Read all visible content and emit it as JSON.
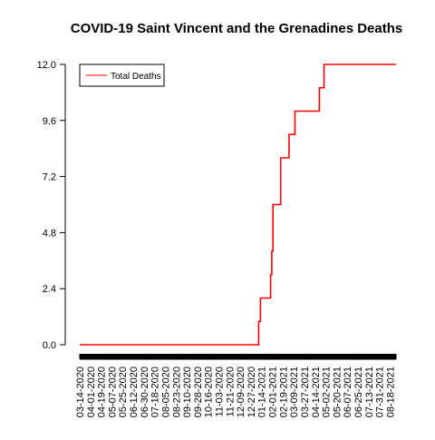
{
  "chart_data": {
    "type": "line",
    "title": "COVID-19 Saint Vincent and the Grenadines Deaths",
    "xlabel": "",
    "ylabel": "",
    "ylim": [
      0,
      12.0
    ],
    "y_ticks": [
      "0.0",
      "2.4",
      "4.8",
      "7.2",
      "9.6",
      "12.0"
    ],
    "x_range": [
      "2020-03-14",
      "2021-08-28"
    ],
    "x_tick_labels": [
      "03-14-2020",
      "04-01-2020",
      "04-19-2020",
      "05-07-2020",
      "05-25-2020",
      "06-12-2020",
      "06-30-2020",
      "07-18-2020",
      "08-05-2020",
      "08-23-2020",
      "09-10-2020",
      "09-28-2020",
      "10-16-2020",
      "11-03-2020",
      "11-21-2020",
      "12-09-2020",
      "12-27-2020",
      "01-14-2021",
      "02-01-2021",
      "02-19-2021",
      "03-09-2021",
      "03-27-2021",
      "04-14-2021",
      "05-02-2021",
      "05-20-2021",
      "06-07-2021",
      "06-25-2021",
      "07-13-2021",
      "07-31-2021",
      "08-18-2021"
    ],
    "legend": {
      "position": "top-left",
      "entries": [
        "Total Deaths"
      ]
    },
    "grid": false,
    "series": [
      {
        "name": "Total Deaths",
        "color": "#ff0000",
        "step": true,
        "points": [
          [
            "2020-03-14",
            0
          ],
          [
            "2021-01-09",
            1
          ],
          [
            "2021-01-12",
            2
          ],
          [
            "2021-01-29",
            3
          ],
          [
            "2021-01-31",
            4
          ],
          [
            "2021-02-02",
            6
          ],
          [
            "2021-02-15",
            8
          ],
          [
            "2021-03-01",
            9
          ],
          [
            "2021-03-11",
            10
          ],
          [
            "2021-04-21",
            11
          ],
          [
            "2021-04-29",
            12
          ],
          [
            "2021-08-28",
            12
          ]
        ]
      }
    ]
  }
}
